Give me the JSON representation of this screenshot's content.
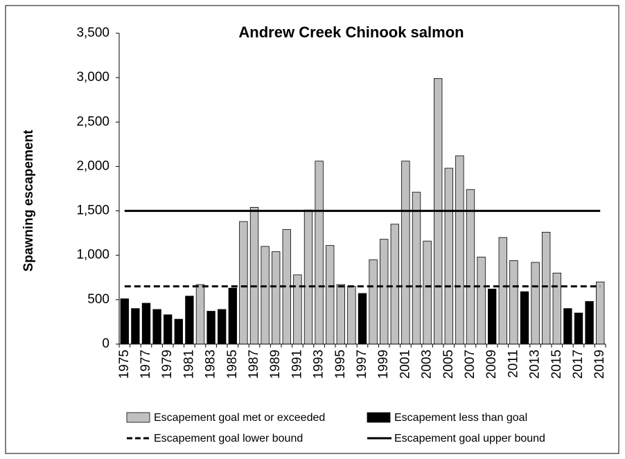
{
  "chart_data": {
    "type": "bar",
    "title": "Andrew Creek Chinook salmon",
    "y_label": "Spawning escapement",
    "categories": [
      "1975",
      null,
      "1977",
      null,
      "1979",
      null,
      "1981",
      null,
      "1983",
      null,
      "1985",
      null,
      "1987",
      null,
      "1989",
      null,
      "1991",
      null,
      "1993",
      null,
      "1995",
      null,
      "1997",
      null,
      "1999",
      null,
      "2001",
      null,
      "2003",
      null,
      "2005",
      null,
      "2007",
      null,
      "2009",
      null,
      "2011",
      null,
      "2013",
      null,
      "2015",
      null,
      "2017",
      null,
      "2019"
    ],
    "series": [
      {
        "name": "Escapement goal met or exceeded",
        "color": "#c0c0c0",
        "values": [
          null,
          null,
          null,
          null,
          null,
          null,
          null,
          670,
          null,
          null,
          null,
          1380,
          1540,
          1100,
          1040,
          1290,
          780,
          1510,
          2060,
          1110,
          670,
          650,
          null,
          950,
          1180,
          1350,
          2060,
          1710,
          1160,
          2990,
          1980,
          2120,
          1740,
          980,
          null,
          1200,
          940,
          null,
          920,
          1260,
          800,
          null,
          null,
          null,
          700
        ]
      },
      {
        "name": "Escapement less than goal",
        "color": "#000000",
        "values": [
          510,
          400,
          460,
          390,
          330,
          280,
          540,
          null,
          370,
          390,
          630,
          null,
          null,
          null,
          null,
          null,
          null,
          null,
          null,
          null,
          null,
          null,
          570,
          null,
          null,
          null,
          null,
          null,
          null,
          null,
          null,
          null,
          null,
          null,
          620,
          null,
          null,
          590,
          null,
          null,
          null,
          400,
          350,
          480,
          null
        ]
      }
    ],
    "goal_lines": [
      {
        "name": "Escapement goal lower bound",
        "value": 650,
        "dashed": true,
        "color": "#000000"
      },
      {
        "name": "Escapement goal upper bound",
        "value": 1500,
        "dashed": false,
        "color": "#000000"
      }
    ],
    "ylim": [
      0,
      3500
    ],
    "yticks": [
      0,
      500,
      {
        "value": 1000,
        "label": "1,000"
      },
      {
        "value": 1500,
        "label": "1,500"
      },
      {
        "value": 2000,
        "label": "2,000"
      },
      {
        "value": 2500,
        "label": "2,500"
      },
      {
        "value": 3000,
        "label": "3,000"
      },
      {
        "value": 3500,
        "label": "3,500"
      }
    ],
    "grid": false
  }
}
